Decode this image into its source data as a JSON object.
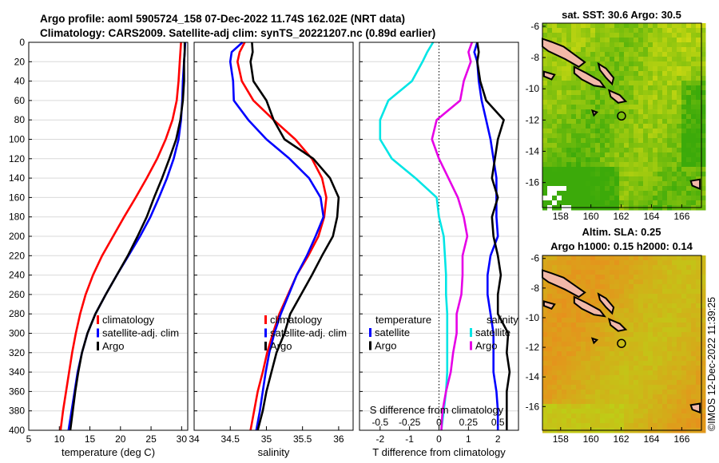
{
  "title": {
    "line1": "Argo profile: aoml 5905724_158 07-Dec-2022 11.74S 162.02E (NRT data)",
    "line2": "Climatology: CARS2009. Satellite-adj clim: synTS_20221207.nc (0.89d earlier)"
  },
  "watermark": "©IMOS 12-Dec-2022 11:39:25",
  "colors": {
    "clim": "#ff0000",
    "sat": "#0000ff",
    "argo": "#000000",
    "t_diff": "#00e5e5",
    "s_diff": "#e600e6"
  },
  "chart_data": [
    {
      "type": "line",
      "id": "temperature",
      "xlabel": "temperature (deg C)",
      "xlim": [
        5,
        31
      ],
      "xticks": [
        "5",
        "10",
        "15",
        "20",
        "25",
        "30"
      ],
      "ylim": [
        400,
        0
      ],
      "yticks": [
        "0",
        "20",
        "40",
        "60",
        "80",
        "100",
        "120",
        "140",
        "160",
        "180",
        "200",
        "220",
        "240",
        "260",
        "280",
        "300",
        "320",
        "340",
        "360",
        "380",
        "400"
      ],
      "legend": [
        "climatology",
        "satellite-adj. clim",
        "Argo"
      ],
      "series": [
        {
          "name": "climatology",
          "depth": [
            0,
            10,
            20,
            40,
            60,
            80,
            100,
            120,
            140,
            160,
            180,
            200,
            220,
            240,
            260,
            280,
            300,
            320,
            340,
            360,
            380,
            400
          ],
          "values": [
            29.9,
            29.8,
            29.7,
            29.5,
            29.2,
            28.5,
            27.4,
            26.0,
            24.3,
            22.5,
            20.6,
            18.8,
            17.0,
            15.5,
            14.3,
            13.4,
            12.7,
            12.1,
            11.6,
            11.1,
            10.6,
            10.2
          ]
        },
        {
          "name": "satellite-adj. clim",
          "depth": [
            0,
            10,
            20,
            40,
            60,
            80,
            100,
            120,
            140,
            160,
            180,
            200,
            220,
            240,
            260,
            280,
            300,
            320,
            340,
            360,
            380,
            400
          ],
          "values": [
            30.6,
            30.5,
            30.4,
            30.2,
            30.1,
            29.9,
            29.5,
            28.7,
            27.6,
            26.3,
            24.9,
            23.2,
            21.3,
            19.4,
            17.6,
            15.9,
            14.6,
            13.7,
            13.0,
            12.5,
            12.0,
            11.5
          ]
        },
        {
          "name": "Argo",
          "depth": [
            0,
            10,
            20,
            40,
            60,
            80,
            100,
            120,
            140,
            160,
            180,
            200,
            220,
            240,
            260,
            280,
            300,
            320,
            340,
            360,
            380,
            400
          ],
          "values": [
            30.5,
            30.5,
            30.4,
            30.4,
            30.2,
            29.8,
            29.1,
            28.0,
            26.8,
            25.5,
            24.3,
            22.8,
            21.2,
            19.4,
            17.6,
            15.9,
            14.6,
            13.7,
            13.1,
            12.6,
            12.2,
            11.8
          ]
        }
      ]
    },
    {
      "type": "line",
      "id": "salinity",
      "xlabel": "salinity",
      "xlim": [
        34,
        36.2
      ],
      "xticks": [
        "34",
        "34.5",
        "35",
        "35.5",
        "36"
      ],
      "ylim": [
        400,
        0
      ],
      "legend": [
        "climatology",
        "satellite-adj. clim",
        "Argo"
      ],
      "series": [
        {
          "name": "climatology",
          "depth": [
            0,
            10,
            20,
            40,
            60,
            80,
            100,
            120,
            140,
            160,
            180,
            200,
            220,
            240,
            260,
            280,
            300,
            320,
            340,
            360,
            380,
            400
          ],
          "values": [
            34.7,
            34.63,
            34.6,
            34.66,
            34.82,
            35.1,
            35.4,
            35.63,
            35.77,
            35.83,
            35.8,
            35.72,
            35.58,
            35.42,
            35.3,
            35.18,
            35.09,
            35.01,
            34.95,
            34.88,
            34.83,
            34.78
          ]
        },
        {
          "name": "satellite-adj. clim",
          "depth": [
            0,
            10,
            20,
            40,
            60,
            80,
            100,
            120,
            140,
            160,
            180,
            200,
            220,
            240,
            260,
            280,
            300,
            320,
            340,
            360,
            380,
            400
          ],
          "values": [
            34.67,
            34.52,
            34.5,
            34.54,
            34.55,
            34.75,
            35.0,
            35.32,
            35.59,
            35.75,
            35.79,
            35.68,
            35.56,
            35.42,
            35.31,
            35.2,
            35.11,
            35.04,
            34.99,
            34.95,
            34.91,
            34.86
          ]
        },
        {
          "name": "Argo",
          "depth": [
            0,
            10,
            20,
            40,
            60,
            80,
            100,
            120,
            140,
            160,
            180,
            200,
            220,
            240,
            260,
            280,
            300,
            320,
            340,
            360,
            380,
            400
          ],
          "values": [
            34.8,
            34.81,
            34.78,
            34.82,
            35.0,
            35.1,
            35.25,
            35.65,
            35.88,
            36.0,
            35.98,
            35.92,
            35.77,
            35.63,
            35.48,
            35.33,
            35.25,
            35.14,
            35.07,
            35.0,
            34.95,
            34.88
          ]
        }
      ]
    },
    {
      "type": "line",
      "id": "difference",
      "xlabel": "T difference from climatology",
      "xlim": [
        -2.7,
        2.7
      ],
      "xticks": [
        "-2",
        "-1",
        "0",
        "1",
        "2"
      ],
      "top_label": "S difference from climatology",
      "top_ticks": [
        "-0.5",
        "-0.25",
        "0",
        "0.25",
        "0.5"
      ],
      "ylim": [
        400,
        0
      ],
      "legend_left_title": "temperature",
      "legend_right_title": "salinity",
      "legend": [
        "satellite",
        "Argo"
      ],
      "series": [
        {
          "name": "temperature satellite",
          "depth": [
            0,
            10,
            20,
            40,
            60,
            80,
            100,
            120,
            140,
            160,
            180,
            200,
            220,
            240,
            260,
            280,
            300,
            320,
            340,
            360,
            380,
            400
          ],
          "values": [
            1.3,
            1.2,
            1.3,
            1.35,
            1.45,
            1.6,
            1.75,
            1.85,
            1.95,
            1.95,
            1.95,
            2.0,
            1.75,
            1.65,
            1.65,
            1.75,
            1.85,
            1.85,
            1.85,
            1.95,
            2.0,
            2.0
          ]
        },
        {
          "name": "temperature Argo",
          "depth": [
            0,
            10,
            20,
            40,
            60,
            80,
            100,
            120,
            140,
            160,
            180,
            200,
            220,
            240,
            260,
            280,
            300,
            320,
            340,
            360,
            380,
            400
          ],
          "values": [
            1.3,
            1.35,
            1.3,
            1.4,
            1.6,
            2.2,
            2.0,
            1.9,
            1.8,
            2.0,
            1.8,
            1.85,
            2.0,
            2.1,
            2.0,
            2.0,
            2.35,
            2.3,
            2.4,
            2.3,
            2.3,
            2.3
          ]
        },
        {
          "name": "salinity satellite",
          "depth": [
            0,
            10,
            20,
            40,
            60,
            80,
            100,
            120,
            140,
            160,
            180,
            200,
            220,
            240,
            260,
            280,
            300,
            320,
            340,
            360,
            380,
            400
          ],
          "values": [
            -0.05,
            -0.1,
            -0.14,
            -0.23,
            -0.43,
            -0.5,
            -0.5,
            -0.4,
            -0.2,
            -0.02,
            0.0,
            0.04,
            0.05,
            0.06,
            0.06,
            0.07,
            0.07,
            0.07,
            0.07,
            0.06,
            0.04,
            0.02
          ]
        },
        {
          "name": "salinity Argo",
          "depth": [
            0,
            10,
            20,
            40,
            60,
            80,
            100,
            120,
            140,
            160,
            180,
            200,
            220,
            240,
            260,
            280,
            300,
            320,
            340,
            360,
            380,
            400
          ],
          "values": [
            0.28,
            0.25,
            0.27,
            0.21,
            0.18,
            -0.02,
            -0.06,
            0.0,
            0.08,
            0.16,
            0.21,
            0.24,
            0.2,
            0.2,
            0.19,
            0.15,
            0.15,
            0.12,
            0.1,
            0.06,
            0.03,
            0.02
          ]
        }
      ]
    },
    {
      "type": "heatmap",
      "id": "sst_map",
      "title": "sat. SST: 30.6 Argo: 30.5",
      "xticks": [
        "158",
        "160",
        "162",
        "164",
        "166"
      ],
      "yticks": [
        "-6",
        "-8",
        "-10",
        "-12",
        "-14",
        "-16"
      ],
      "xlim": [
        156.8,
        167.3
      ],
      "ylim": [
        -17.6,
        -5.8
      ],
      "marker": {
        "lon": 162.02,
        "lat": -11.74
      }
    },
    {
      "type": "heatmap",
      "id": "sla_map",
      "title1": "Altim. SLA: 0.25",
      "title2": "Argo h1000: 0.15 h2000: 0.14",
      "xticks": [
        "158",
        "160",
        "162",
        "164",
        "166"
      ],
      "yticks": [
        "-6",
        "-8",
        "-10",
        "-12",
        "-14",
        "-16"
      ],
      "xlim": [
        156.8,
        167.3
      ],
      "ylim": [
        -17.6,
        -5.8
      ],
      "marker": {
        "lon": 162.02,
        "lat": -11.74
      }
    }
  ]
}
